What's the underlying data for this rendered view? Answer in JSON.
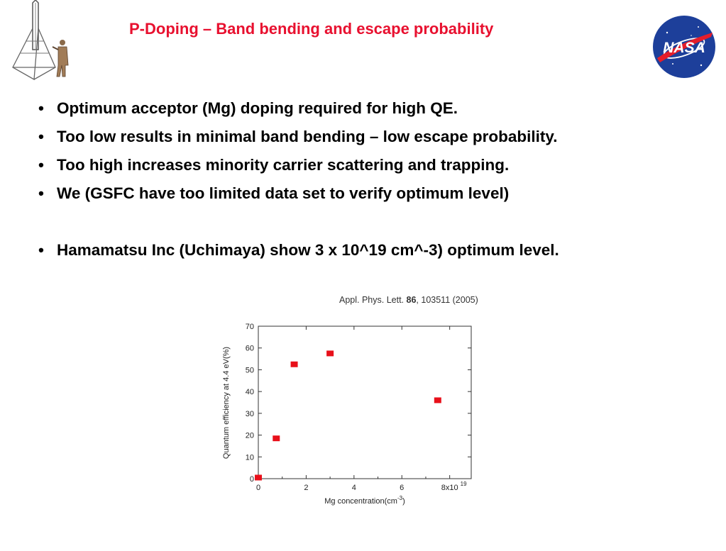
{
  "header": {
    "title": "P-Doping – Band bending and escape probability",
    "title_color": "#e8102f",
    "left_logo_icon": "rocket-pioneer-icon",
    "right_logo_icon": "nasa-meatball-icon",
    "right_logo_text": "NASA"
  },
  "bullets": [
    {
      "marker": "•",
      "text": "Optimum acceptor (Mg) doping required for high QE."
    },
    {
      "marker": "•",
      "text": "Too low results in minimal band bending – low escape probability."
    },
    {
      "marker": "•",
      "text": "Too high increases minority carrier scattering and trapping."
    },
    {
      "marker": "•",
      "text": "We (GSFC have too limited data set to verify optimum level)"
    },
    {
      "marker": "•",
      "text": "Hamamatsu Inc (Uchimaya) show 3 x 10^19 cm^-3) optimum level."
    }
  ],
  "citation": {
    "journal": "Appl. Phys. Lett.",
    "volume": "86",
    "rest": ", 103511 (2005)"
  },
  "chart_data": {
    "type": "scatter",
    "xlabel": "Mg concentration(cm",
    "xlabel_exp": "-3",
    "xlabel_close": ")",
    "ylabel": "Quantum efficiency at 4.4 eV(%)",
    "xlim": [
      0,
      8.9
    ],
    "ylim": [
      0,
      70
    ],
    "x_ticks": [
      {
        "value": 0,
        "label": "0"
      },
      {
        "value": 2,
        "label": "2"
      },
      {
        "value": 4,
        "label": "4"
      },
      {
        "value": 6,
        "label": "6"
      },
      {
        "value": 8,
        "label": "8x10"
      }
    ],
    "x_tick_exp": "19",
    "y_ticks": [
      0,
      10,
      20,
      30,
      40,
      50,
      60,
      70
    ],
    "marker_color": "#e8101a",
    "points": [
      {
        "x": 0.0,
        "y": 0.5
      },
      {
        "x": 0.75,
        "y": 18.5
      },
      {
        "x": 1.5,
        "y": 52.5
      },
      {
        "x": 3.0,
        "y": 57.5
      },
      {
        "x": 7.5,
        "y": 36.0
      }
    ]
  }
}
